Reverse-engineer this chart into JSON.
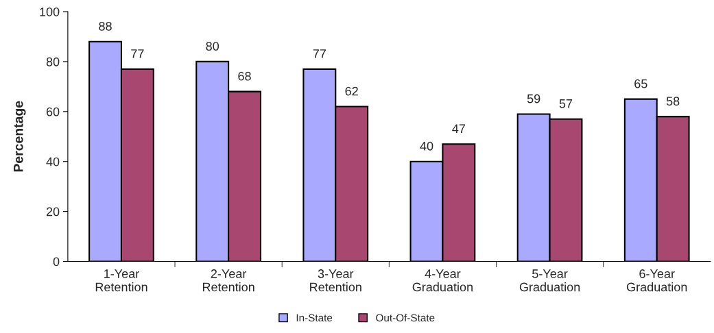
{
  "chart_data": {
    "type": "bar",
    "ylabel": "Percentage",
    "categories": [
      "1-Year\nRetention",
      "2-Year\nRetention",
      "3-Year\nRetention",
      "4-Year\nGraduation",
      "5-Year\nGraduation",
      "6-Year\nGraduation"
    ],
    "series": [
      {
        "name": "In-State",
        "color": "#a9aaff",
        "values": [
          88,
          80,
          77,
          40,
          59,
          65
        ]
      },
      {
        "name": "Out-Of-State",
        "color": "#a84870",
        "values": [
          77,
          68,
          62,
          47,
          57,
          58
        ]
      }
    ],
    "ylim": [
      0,
      100
    ],
    "yticks": [
      0,
      20,
      40,
      60,
      80,
      100
    ],
    "grid": false,
    "legend": "bottom",
    "data_labels": true
  }
}
